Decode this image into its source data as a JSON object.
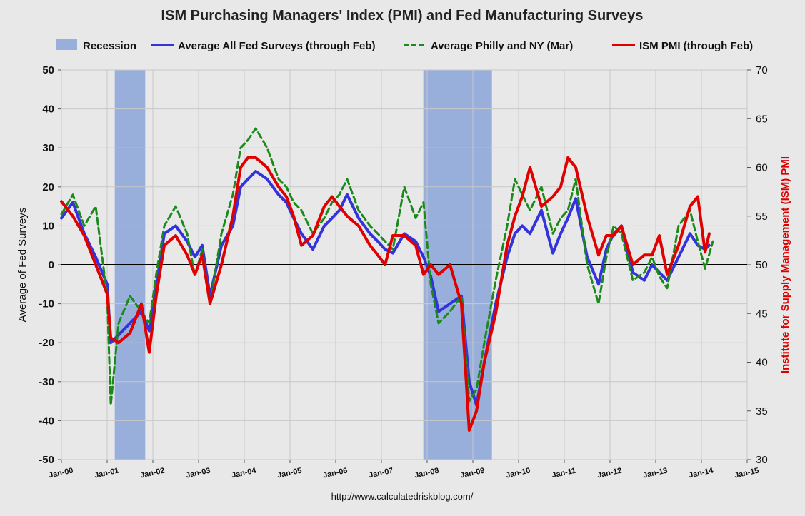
{
  "chart_data": {
    "type": "line",
    "title": "ISM Purchasing Managers' Index (PMI) and Fed Manufacturing Surveys",
    "ylabel_left": "Average of Fed Surveys",
    "ylabel_right": "Institute for Supply Management (ISM) PMI",
    "source": "http://www.calculatedriskblog.com/",
    "ylim_left": [
      -50,
      50
    ],
    "ylim_right": [
      30,
      70
    ],
    "xlim": [
      "Jan-00",
      "Jan-15"
    ],
    "grid": true,
    "legend_position": "top",
    "x_ticks": [
      "Jan-00",
      "Jan-01",
      "Jan-02",
      "Jan-03",
      "Jan-04",
      "Jan-05",
      "Jan-06",
      "Jan-07",
      "Jan-08",
      "Jan-09",
      "Jan-10",
      "Jan-11",
      "Jan-12",
      "Jan-13",
      "Jan-14",
      "Jan-15"
    ],
    "y_ticks_left": [
      "50",
      "40",
      "30",
      "20",
      "10",
      "0",
      "-10",
      "-20",
      "-30",
      "-40",
      "-50"
    ],
    "y_ticks_right": [
      "70",
      "65",
      "60",
      "55",
      "50",
      "45",
      "40",
      "35",
      "30"
    ],
    "recessions": [
      {
        "name": "Recession",
        "start": "Mar-01",
        "end": "Nov-01"
      },
      {
        "name": "Recession",
        "start": "Dec-07",
        "end": "Jun-09"
      }
    ],
    "series": [
      {
        "name": "Average All Fed Surveys (through Feb)",
        "axis": "left",
        "color": "#3333dd",
        "dash": "solid",
        "points": [
          [
            2000.0,
            12
          ],
          [
            2000.25,
            16
          ],
          [
            2000.5,
            8
          ],
          [
            2000.75,
            2
          ],
          [
            2001.0,
            -5
          ],
          [
            2001.08,
            -20
          ],
          [
            2001.25,
            -18
          ],
          [
            2001.5,
            -15
          ],
          [
            2001.75,
            -12
          ],
          [
            2001.92,
            -17
          ],
          [
            2002.08,
            -5
          ],
          [
            2002.25,
            8
          ],
          [
            2002.5,
            10
          ],
          [
            2002.75,
            6
          ],
          [
            2002.92,
            2
          ],
          [
            2003.08,
            5
          ],
          [
            2003.25,
            -8
          ],
          [
            2003.5,
            5
          ],
          [
            2003.75,
            10
          ],
          [
            2003.92,
            20
          ],
          [
            2004.08,
            22
          ],
          [
            2004.25,
            24
          ],
          [
            2004.5,
            22
          ],
          [
            2004.75,
            18
          ],
          [
            2004.92,
            16
          ],
          [
            2005.08,
            12
          ],
          [
            2005.25,
            8
          ],
          [
            2005.5,
            4
          ],
          [
            2005.75,
            10
          ],
          [
            2005.92,
            12
          ],
          [
            2006.08,
            14
          ],
          [
            2006.25,
            18
          ],
          [
            2006.5,
            12
          ],
          [
            2006.75,
            8
          ],
          [
            2006.92,
            6
          ],
          [
            2007.08,
            4
          ],
          [
            2007.25,
            3
          ],
          [
            2007.5,
            8
          ],
          [
            2007.75,
            6
          ],
          [
            2007.92,
            2
          ],
          [
            2008.08,
            -3
          ],
          [
            2008.25,
            -12
          ],
          [
            2008.5,
            -10
          ],
          [
            2008.75,
            -8
          ],
          [
            2008.92,
            -30
          ],
          [
            2009.08,
            -36
          ],
          [
            2009.25,
            -25
          ],
          [
            2009.5,
            -10
          ],
          [
            2009.75,
            2
          ],
          [
            2009.92,
            8
          ],
          [
            2010.08,
            10
          ],
          [
            2010.25,
            8
          ],
          [
            2010.5,
            14
          ],
          [
            2010.75,
            3
          ],
          [
            2010.92,
            8
          ],
          [
            2011.08,
            12
          ],
          [
            2011.25,
            17
          ],
          [
            2011.5,
            2
          ],
          [
            2011.75,
            -5
          ],
          [
            2011.92,
            4
          ],
          [
            2012.08,
            8
          ],
          [
            2012.25,
            10
          ],
          [
            2012.5,
            -2
          ],
          [
            2012.75,
            -4
          ],
          [
            2012.92,
            0
          ],
          [
            2013.08,
            -2
          ],
          [
            2013.25,
            -4
          ],
          [
            2013.5,
            2
          ],
          [
            2013.75,
            8
          ],
          [
            2013.92,
            5
          ],
          [
            2014.08,
            4
          ],
          [
            2014.17,
            5
          ]
        ]
      },
      {
        "name": "Average Philly and NY (Mar)",
        "axis": "left",
        "color": "#1a8a1a",
        "dash": "dashed",
        "points": [
          [
            2000.0,
            13
          ],
          [
            2000.25,
            18
          ],
          [
            2000.5,
            10
          ],
          [
            2000.75,
            15
          ],
          [
            2001.0,
            -8
          ],
          [
            2001.08,
            -36
          ],
          [
            2001.25,
            -15
          ],
          [
            2001.5,
            -8
          ],
          [
            2001.75,
            -12
          ],
          [
            2001.92,
            -15
          ],
          [
            2002.08,
            -2
          ],
          [
            2002.25,
            10
          ],
          [
            2002.5,
            15
          ],
          [
            2002.75,
            8
          ],
          [
            2002.92,
            -3
          ],
          [
            2003.08,
            4
          ],
          [
            2003.25,
            -10
          ],
          [
            2003.5,
            8
          ],
          [
            2003.75,
            18
          ],
          [
            2003.92,
            30
          ],
          [
            2004.08,
            32
          ],
          [
            2004.25,
            35
          ],
          [
            2004.5,
            30
          ],
          [
            2004.75,
            22
          ],
          [
            2004.92,
            20
          ],
          [
            2005.08,
            16
          ],
          [
            2005.25,
            14
          ],
          [
            2005.5,
            8
          ],
          [
            2005.75,
            12
          ],
          [
            2005.92,
            16
          ],
          [
            2006.08,
            18
          ],
          [
            2006.25,
            22
          ],
          [
            2006.5,
            14
          ],
          [
            2006.75,
            10
          ],
          [
            2006.92,
            8
          ],
          [
            2007.08,
            6
          ],
          [
            2007.25,
            4
          ],
          [
            2007.5,
            20
          ],
          [
            2007.75,
            12
          ],
          [
            2007.92,
            16
          ],
          [
            2008.08,
            -5
          ],
          [
            2008.25,
            -15
          ],
          [
            2008.5,
            -12
          ],
          [
            2008.75,
            -8
          ],
          [
            2008.92,
            -35
          ],
          [
            2009.08,
            -32
          ],
          [
            2009.25,
            -20
          ],
          [
            2009.5,
            -4
          ],
          [
            2009.75,
            10
          ],
          [
            2009.92,
            22
          ],
          [
            2010.08,
            18
          ],
          [
            2010.25,
            14
          ],
          [
            2010.5,
            20
          ],
          [
            2010.75,
            8
          ],
          [
            2010.92,
            12
          ],
          [
            2011.08,
            14
          ],
          [
            2011.25,
            22
          ],
          [
            2011.5,
            0
          ],
          [
            2011.75,
            -10
          ],
          [
            2011.92,
            2
          ],
          [
            2012.08,
            10
          ],
          [
            2012.25,
            8
          ],
          [
            2012.5,
            -4
          ],
          [
            2012.75,
            -2
          ],
          [
            2012.92,
            2
          ],
          [
            2013.08,
            -3
          ],
          [
            2013.25,
            -6
          ],
          [
            2013.5,
            10
          ],
          [
            2013.75,
            14
          ],
          [
            2013.92,
            6
          ],
          [
            2014.08,
            -1
          ],
          [
            2014.25,
            6
          ]
        ]
      },
      {
        "name": "ISM PMI (through Feb)",
        "axis": "right",
        "color": "#e00000",
        "dash": "solid",
        "points": [
          [
            2000.0,
            56.5
          ],
          [
            2000.25,
            55
          ],
          [
            2000.5,
            53
          ],
          [
            2000.75,
            50
          ],
          [
            2001.0,
            47
          ],
          [
            2001.08,
            42.5
          ],
          [
            2001.25,
            42
          ],
          [
            2001.5,
            43
          ],
          [
            2001.75,
            46
          ],
          [
            2001.92,
            41
          ],
          [
            2002.08,
            47
          ],
          [
            2002.25,
            52
          ],
          [
            2002.5,
            53
          ],
          [
            2002.75,
            51
          ],
          [
            2002.92,
            49
          ],
          [
            2003.08,
            51
          ],
          [
            2003.25,
            46
          ],
          [
            2003.5,
            50
          ],
          [
            2003.75,
            55
          ],
          [
            2003.92,
            60
          ],
          [
            2004.08,
            61
          ],
          [
            2004.25,
            61
          ],
          [
            2004.5,
            60
          ],
          [
            2004.75,
            58
          ],
          [
            2004.92,
            57
          ],
          [
            2005.08,
            55
          ],
          [
            2005.25,
            52
          ],
          [
            2005.5,
            53
          ],
          [
            2005.75,
            56
          ],
          [
            2005.92,
            57
          ],
          [
            2006.08,
            56
          ],
          [
            2006.25,
            55
          ],
          [
            2006.5,
            54
          ],
          [
            2006.75,
            52
          ],
          [
            2006.92,
            51
          ],
          [
            2007.08,
            50
          ],
          [
            2007.25,
            53
          ],
          [
            2007.5,
            53
          ],
          [
            2007.75,
            52
          ],
          [
            2007.92,
            49
          ],
          [
            2008.08,
            50
          ],
          [
            2008.25,
            49
          ],
          [
            2008.5,
            50
          ],
          [
            2008.75,
            46
          ],
          [
            2008.92,
            33
          ],
          [
            2009.08,
            35
          ],
          [
            2009.25,
            40
          ],
          [
            2009.5,
            45
          ],
          [
            2009.75,
            52
          ],
          [
            2009.92,
            55
          ],
          [
            2010.08,
            57
          ],
          [
            2010.25,
            60
          ],
          [
            2010.5,
            56
          ],
          [
            2010.75,
            57
          ],
          [
            2010.92,
            58
          ],
          [
            2011.08,
            61
          ],
          [
            2011.25,
            60
          ],
          [
            2011.5,
            55
          ],
          [
            2011.75,
            51
          ],
          [
            2011.92,
            53
          ],
          [
            2012.08,
            53
          ],
          [
            2012.25,
            54
          ],
          [
            2012.5,
            50
          ],
          [
            2012.75,
            51
          ],
          [
            2012.92,
            51
          ],
          [
            2013.08,
            53
          ],
          [
            2013.25,
            49
          ],
          [
            2013.5,
            52
          ],
          [
            2013.75,
            56
          ],
          [
            2013.92,
            57
          ],
          [
            2014.08,
            51.3
          ],
          [
            2014.17,
            53.2
          ]
        ]
      }
    ],
    "legend": [
      {
        "label": "Recession",
        "kind": "patch",
        "color": "#98aedb"
      },
      {
        "label": "Average All Fed Surveys (through Feb)",
        "kind": "line",
        "color": "#3333dd",
        "dash": "solid"
      },
      {
        "label": "Average Philly and NY (Mar)",
        "kind": "line",
        "color": "#1a8a1a",
        "dash": "dashed"
      },
      {
        "label": "ISM PMI (through Feb)",
        "kind": "line",
        "color": "#e00000",
        "dash": "solid"
      }
    ]
  }
}
